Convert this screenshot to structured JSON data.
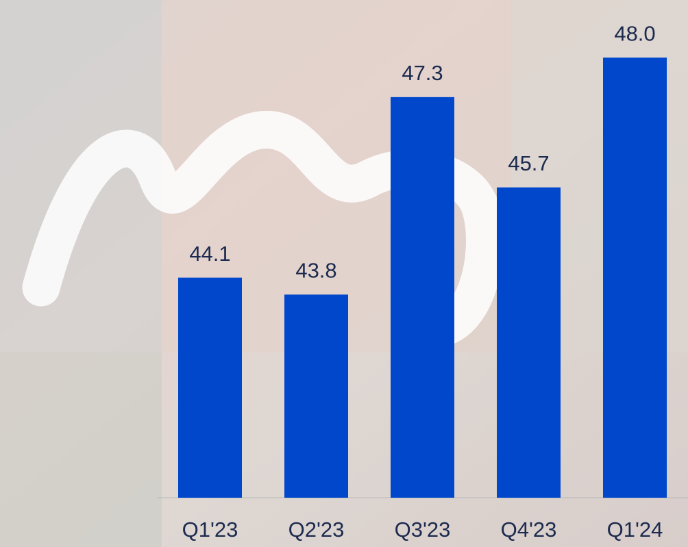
{
  "chart_data": {
    "type": "bar",
    "categories": [
      "Q1'23",
      "Q2'23",
      "Q3'23",
      "Q4'23",
      "Q1'24"
    ],
    "values": [
      44.1,
      43.8,
      47.3,
      45.7,
      48.0
    ],
    "value_labels": [
      "44.1",
      "43.8",
      "47.3",
      "45.7",
      "48.0"
    ],
    "color": "#0047cc",
    "ylim": [
      40.2,
      48.9
    ]
  }
}
